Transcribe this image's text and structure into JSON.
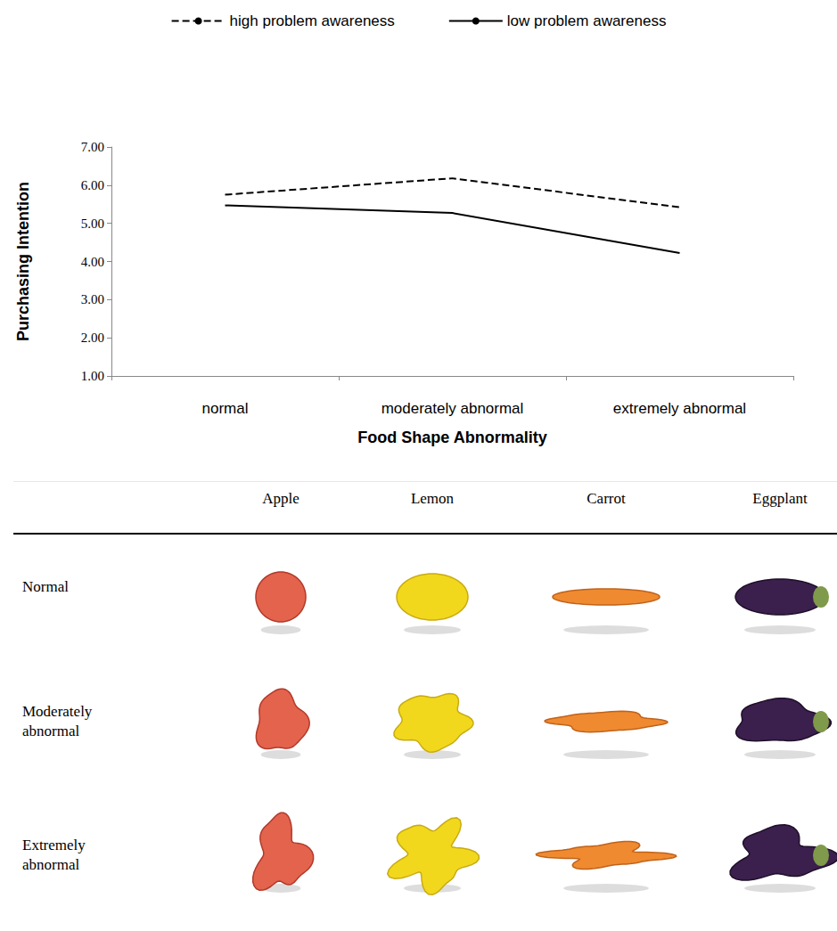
{
  "chart_data": {
    "type": "line",
    "x_label": "Food Shape Abnormality",
    "y_label": "Purchasing Intention",
    "categories": [
      "normal",
      "moderately abnormal",
      "extremely abnormal"
    ],
    "series": [
      {
        "name": "high problem awareness",
        "color": "#000000",
        "line_style": "dashed",
        "values": [
          5.75,
          6.18,
          5.42
        ]
      },
      {
        "name": "low problem awareness",
        "color": "#000000",
        "line_style": "solid",
        "values": [
          5.47,
          5.27,
          4.22
        ]
      }
    ],
    "ylim": [
      1,
      7
    ],
    "yticks": [
      {
        "value": 1,
        "label": "1.00"
      },
      {
        "value": 2,
        "label": "2.00"
      },
      {
        "value": 3,
        "label": "3.00"
      },
      {
        "value": 4,
        "label": "4.00"
      },
      {
        "value": 5,
        "label": "5.00"
      },
      {
        "value": 6,
        "label": "6.00"
      },
      {
        "value": 7,
        "label": "7.00"
      }
    ],
    "grid": false,
    "legend": "top"
  },
  "table": {
    "columns": [
      "Apple",
      "Lemon",
      "Carrot",
      "Eggplant"
    ],
    "rows": [
      "Normal",
      "Moderately abnormal",
      "Extremely abnormal"
    ]
  }
}
